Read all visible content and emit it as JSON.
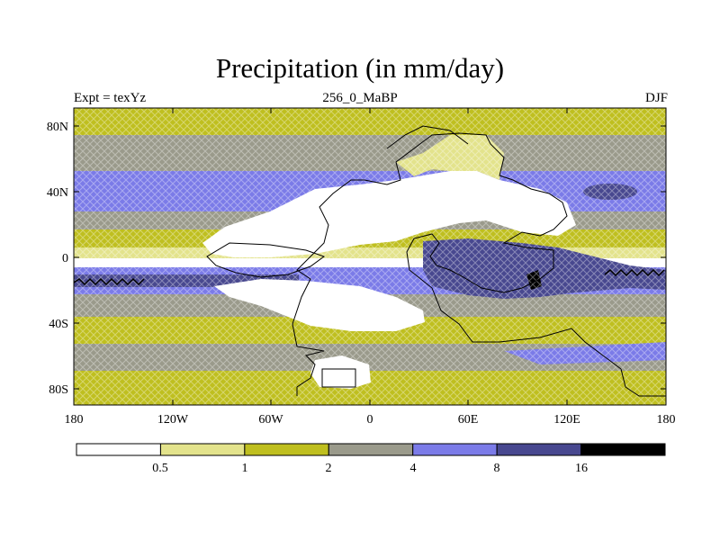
{
  "title": "Precipitation (in mm/day)",
  "subtitle_left": "Expt = texYz",
  "subtitle_center": "256_0_MaBP",
  "subtitle_right": "DJF",
  "lat_ticks": [
    "80N",
    "40N",
    "0",
    "40S",
    "80S"
  ],
  "lon_ticks": [
    "180",
    "120W",
    "60W",
    "0",
    "60E",
    "120E",
    "180"
  ],
  "colorbar": {
    "labels": [
      "0.5",
      "1",
      "2",
      "4",
      "8",
      "16"
    ],
    "colors": [
      "#ffffff",
      "#e3e38c",
      "#bfbf1f",
      "#9a9a8b",
      "#7b7be8",
      "#48488f",
      "#000000"
    ]
  }
}
